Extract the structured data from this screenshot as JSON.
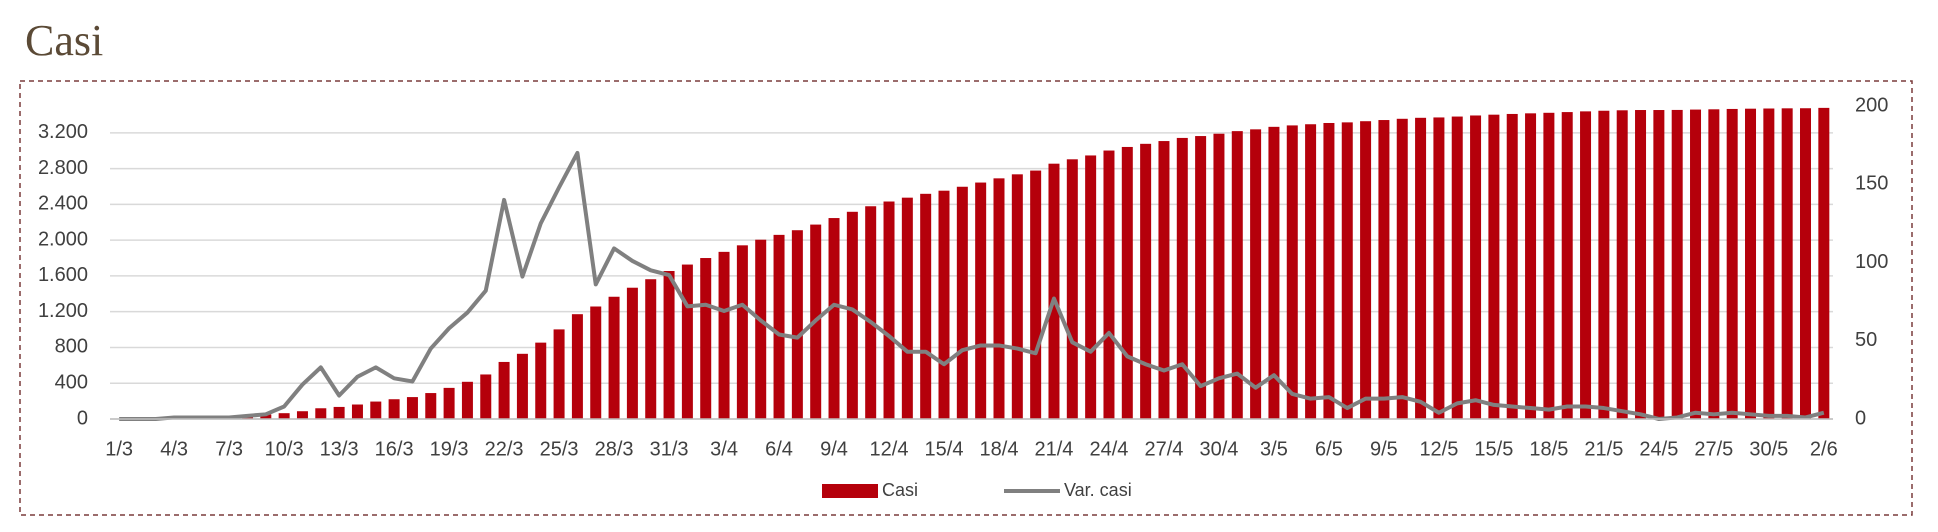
{
  "chart_data": {
    "type": "bar",
    "title": "Casi",
    "categories": [
      "1/3",
      null,
      null,
      "4/3",
      null,
      null,
      "7/3",
      null,
      null,
      "10/3",
      null,
      null,
      "13/3",
      null,
      null,
      "16/3",
      null,
      null,
      "19/3",
      null,
      null,
      "22/3",
      null,
      null,
      "25/3",
      null,
      null,
      "28/3",
      null,
      null,
      "31/3",
      null,
      null,
      "3/4",
      null,
      null,
      "6/4",
      null,
      null,
      "9/4",
      null,
      null,
      "12/4",
      null,
      null,
      "15/4",
      null,
      null,
      "18/4",
      null,
      null,
      "21/4",
      null,
      null,
      "24/4",
      null,
      null,
      "27/4",
      null,
      null,
      "30/4",
      null,
      null,
      "3/5",
      null,
      null,
      "6/5",
      null,
      null,
      "9/5",
      null,
      null,
      "12/5",
      null,
      null,
      "15/5",
      null,
      null,
      "18/5",
      null,
      null,
      "21/5",
      null,
      null,
      "24/5",
      null,
      null,
      "27/5",
      null,
      null,
      "30/5",
      null,
      null,
      "2/6"
    ],
    "series": [
      {
        "name": "Casi",
        "type": "bar",
        "color": "#b5000b",
        "values": [
          5,
          6,
          8,
          10,
          14,
          22,
          30,
          40,
          50,
          65,
          87,
          120,
          135,
          162,
          195,
          221,
          245,
          290,
          348,
          416,
          498,
          638,
          729,
          854,
          1002,
          1172,
          1258,
          1367,
          1468,
          1563,
          1655,
          1727,
          1800,
          1869,
          1942,
          2005,
          2059,
          2111,
          2174,
          2247,
          2317,
          2379,
          2432,
          2475,
          2518,
          2553,
          2597,
          2644,
          2691,
          2736,
          2778,
          2855,
          2904,
          2947,
          3002,
          3042,
          3077,
          3108,
          3143,
          3164,
          3190,
          3219,
          3239,
          3267,
          3283,
          3296,
          3310,
          3317,
          3330,
          3343,
          3357,
          3368,
          3372,
          3382,
          3394,
          3403,
          3411,
          3418,
          3424,
          3432,
          3440,
          3447,
          3452,
          3455,
          3455,
          3456,
          3460,
          3463,
          3467,
          3470,
          3472,
          3474,
          3475,
          3479
        ]
      },
      {
        "name": "Var. casi",
        "type": "line",
        "axis": "y2",
        "color": "#808080",
        "values": [
          0,
          0,
          0,
          1,
          1,
          1,
          1,
          2,
          3,
          8,
          22,
          33,
          15,
          27,
          33,
          26,
          24,
          45,
          58,
          68,
          82,
          140,
          91,
          125,
          148,
          170,
          86,
          109,
          101,
          95,
          92,
          72,
          73,
          69,
          73,
          63,
          54,
          52,
          63,
          73,
          70,
          62,
          53,
          43,
          43,
          35,
          44,
          47,
          47,
          45,
          42,
          77,
          49,
          43,
          55,
          40,
          35,
          31,
          35,
          21,
          26,
          29,
          20,
          28,
          16,
          13,
          14,
          7,
          13,
          13,
          14,
          11,
          4,
          10,
          12,
          9,
          8,
          7,
          6,
          8,
          8,
          7,
          5,
          3,
          0,
          1,
          4,
          3,
          4,
          3,
          2,
          2,
          1,
          4
        ]
      }
    ],
    "ylim": [
      0,
      3500
    ],
    "yticks": [
      0,
      400,
      800,
      {
        "value": 1200,
        "label": "1.200"
      },
      {
        "value": 1600,
        "label": "1.600"
      },
      {
        "value": 2000,
        "label": "2.000"
      },
      {
        "value": 2400,
        "label": "2.400"
      },
      {
        "value": 2800,
        "label": "2.800"
      },
      {
        "value": 3200,
        "label": "3.200"
      }
    ],
    "y2lim": [
      0,
      200
    ],
    "y2ticks": [
      0,
      50,
      100,
      150,
      200
    ],
    "grid": true,
    "legend": "bottom"
  }
}
